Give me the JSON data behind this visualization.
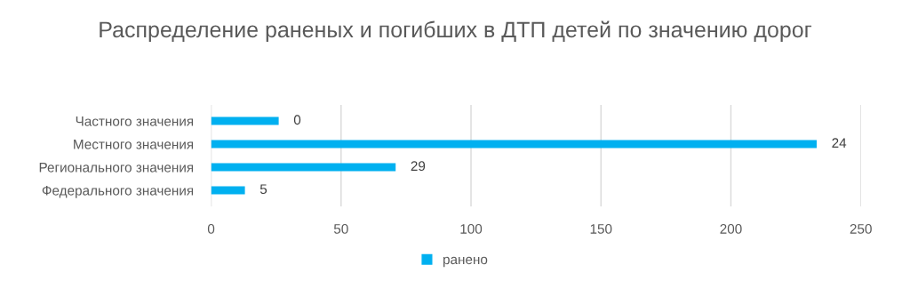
{
  "chart_data": {
    "type": "bar",
    "orientation": "horizontal",
    "title": "Распределение раненых и погибших в ДТП детей по значению дорог",
    "categories": [
      "Частного значения",
      "Местного значения",
      "Регионального значения",
      "Федерального значения"
    ],
    "series": [
      {
        "name": "ранено",
        "color": "#00b0f0",
        "values": [
          26,
          233,
          71,
          13
        ]
      }
    ],
    "annotations": [
      {
        "text": "0",
        "x": 26,
        "y": "Частного значения"
      },
      {
        "text": "24",
        "x": 233,
        "y": "Местного значения"
      },
      {
        "text": "29",
        "x": 71,
        "y": "Регионального значения"
      },
      {
        "text": "5",
        "x": 13,
        "y": "Федерального значения"
      }
    ],
    "xlim": [
      0,
      250
    ],
    "xticks": [
      0,
      50,
      100,
      150,
      200,
      250
    ],
    "grid": "x",
    "legend": "bottom"
  }
}
